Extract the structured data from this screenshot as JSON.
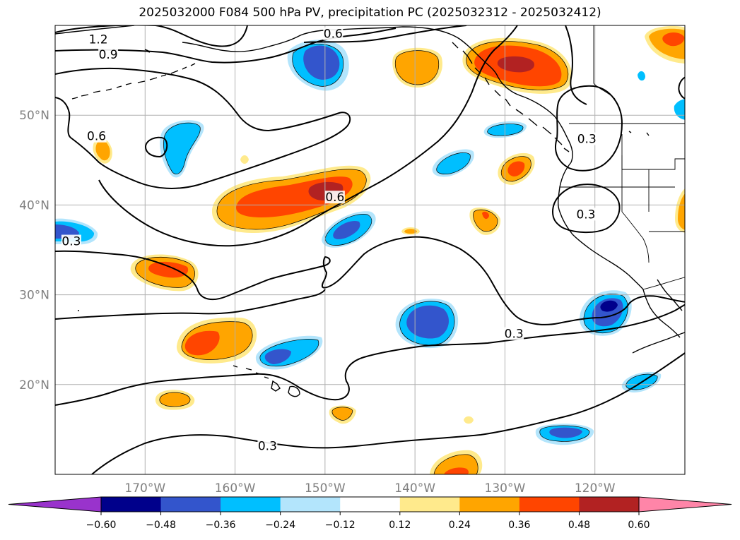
{
  "title": "2025032000 F084 500 hPa PV, precipitation PC (2025032312 - 2025032412)",
  "map": {
    "lon_range": [
      -180,
      -110
    ],
    "lat_range": [
      10,
      60
    ],
    "lon_ticks": [
      {
        "lon": -170,
        "label": "170°W"
      },
      {
        "lon": -160,
        "label": "160°W"
      },
      {
        "lon": -150,
        "label": "150°W"
      },
      {
        "lon": -140,
        "label": "140°W"
      },
      {
        "lon": -130,
        "label": "130°W"
      },
      {
        "lon": -120,
        "label": "120°W"
      }
    ],
    "lat_ticks": [
      {
        "lat": 20,
        "label": "20°N"
      },
      {
        "lat": 30,
        "label": "30°N"
      },
      {
        "lat": 40,
        "label": "40°N"
      },
      {
        "lat": 50,
        "label": "50°N"
      }
    ],
    "gridlines": true,
    "contour_labels": [
      {
        "text": "1.2",
        "lon": -175.2,
        "lat": 58.4
      },
      {
        "text": "0.9",
        "lon": -174.1,
        "lat": 56.7
      },
      {
        "text": "0.6",
        "lon": -149.1,
        "lat": 59.0
      },
      {
        "text": "0.6",
        "lon": -175.4,
        "lat": 47.6
      },
      {
        "text": "0.6",
        "lon": -148.9,
        "lat": 40.8
      },
      {
        "text": "0.3",
        "lon": -178.2,
        "lat": 35.9
      },
      {
        "text": "0.3",
        "lon": -120.9,
        "lat": 47.3
      },
      {
        "text": "0.3",
        "lon": -121.0,
        "lat": 38.9
      },
      {
        "text": "0.3",
        "lon": -129.0,
        "lat": 25.6
      },
      {
        "text": "0.3",
        "lon": -156.4,
        "lat": 13.1
      }
    ]
  },
  "colorbar": {
    "colors": [
      "#9933cc",
      "#00008b",
      "#3355cc",
      "#00bfff",
      "#b3e5fc",
      "#ffffff",
      "#ffea8c",
      "#ffa500",
      "#ff4500",
      "#b22222",
      "#ff85a8"
    ],
    "tick_labels": [
      "−0.60",
      "−0.48",
      "−0.36",
      "−0.24",
      "−0.12",
      "0.12",
      "0.24",
      "0.36",
      "0.48",
      "0.60"
    ]
  }
}
